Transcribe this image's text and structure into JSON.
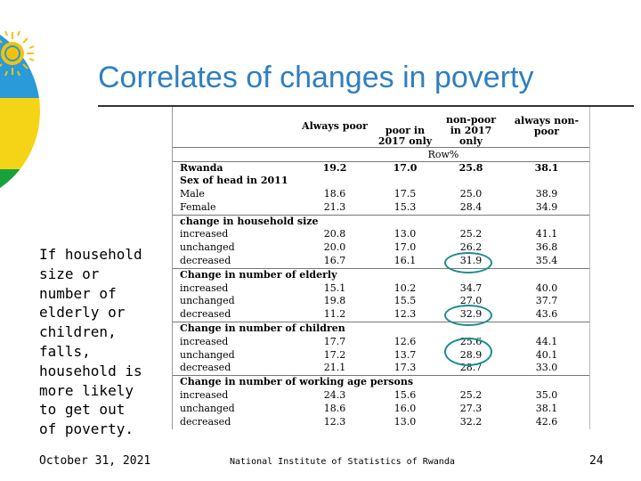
{
  "title": "Correlates of changes in poverty",
  "side_text": "If household size or number of elderly or children, falls, household is more likely to get out of poverty.",
  "footer": {
    "date": "October 31, 2021",
    "source": "National Institute of Statistics of Rwanda",
    "page_number": "24"
  },
  "table": {
    "headers": [
      "Always poor",
      "poor in 2017 only",
      "non-poor in 2017 only",
      "always non-poor"
    ],
    "unit_label": "Row%",
    "rows": [
      {
        "type": "total",
        "label": "Rwanda",
        "values": [
          "19.2",
          "17.0",
          "25.8",
          "38.1"
        ]
      },
      {
        "type": "section",
        "label": "Sex of head in 2011"
      },
      {
        "type": "data",
        "label": "Male",
        "values": [
          "18.6",
          "17.5",
          "25.0",
          "38.9"
        ]
      },
      {
        "type": "data",
        "label": "Female",
        "values": [
          "21.3",
          "15.3",
          "28.4",
          "34.9"
        ]
      },
      {
        "type": "section",
        "label": "change in household size"
      },
      {
        "type": "data",
        "label": "increased",
        "values": [
          "20.8",
          "13.0",
          "25.2",
          "41.1"
        ]
      },
      {
        "type": "data",
        "label": "unchanged",
        "values": [
          "20.0",
          "17.0",
          "26.2",
          "36.8"
        ]
      },
      {
        "type": "data",
        "label": "decreased",
        "values": [
          "16.7",
          "16.1",
          "31.9",
          "35.4"
        ]
      },
      {
        "type": "section",
        "label": "Change in number of elderly"
      },
      {
        "type": "data",
        "label": "increased",
        "values": [
          "15.1",
          "10.2",
          "34.7",
          "40.0"
        ]
      },
      {
        "type": "data",
        "label": "unchanged",
        "values": [
          "19.8",
          "15.5",
          "27.0",
          "37.7"
        ]
      },
      {
        "type": "data",
        "label": "decreased",
        "values": [
          "11.2",
          "12.3",
          "32.9",
          "43.6"
        ]
      },
      {
        "type": "section",
        "label": "Change in number of children"
      },
      {
        "type": "data",
        "label": "increased",
        "values": [
          "17.7",
          "12.6",
          "25.6",
          "44.1"
        ]
      },
      {
        "type": "data",
        "label": "unchanged",
        "values": [
          "17.2",
          "13.7",
          "28.9",
          "40.1"
        ]
      },
      {
        "type": "data",
        "label": "decreased",
        "values": [
          "21.1",
          "17.3",
          "28.7",
          "33.0"
        ]
      },
      {
        "type": "section",
        "label": "Change in number of working age persons"
      },
      {
        "type": "data",
        "label": "increased",
        "values": [
          "24.3",
          "15.6",
          "25.2",
          "35.0"
        ]
      },
      {
        "type": "data",
        "label": "unchanged",
        "values": [
          "18.6",
          "16.0",
          "27.3",
          "38.1"
        ]
      },
      {
        "type": "data",
        "label": "decreased",
        "values": [
          "12.3",
          "13.0",
          "32.2",
          "42.6"
        ]
      }
    ]
  },
  "colors": {
    "title": "#2f7fc0",
    "circle": "#1d8c8f",
    "flag_blue": "#2a9bd8",
    "flag_yellow": "#f5d417",
    "flag_green": "#19a23b",
    "sun": "#f4c20d"
  }
}
